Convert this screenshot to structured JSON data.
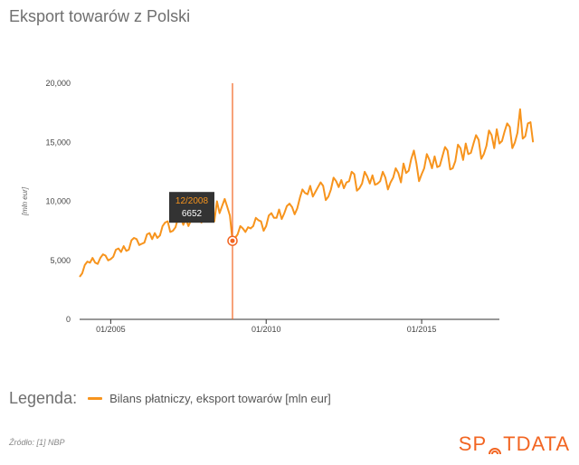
{
  "title": "Eksport towarów z Polski",
  "legend": {
    "heading": "Legenda:",
    "label": "Bilans płatniczy, eksport towarów [mln eur]"
  },
  "source": "Źródło: [1] NBP",
  "logo": {
    "before": "SP",
    "after": "TDATA"
  },
  "colors": {
    "series": "#f7941d",
    "marker_line": "#f26522",
    "tooltip_bg": "#333333",
    "axis": "#333333",
    "tick_text": "#444444"
  },
  "tooltip": {
    "date": "12/2008",
    "value": "6652"
  },
  "chart_data": {
    "type": "line",
    "title": "Eksport towarów z Polski",
    "ylabel": "[mln eur]",
    "xlabel": "",
    "ylim": [
      0,
      20000
    ],
    "yticks": [
      0,
      5000,
      10000,
      15000,
      20000
    ],
    "ytick_labels": [
      "0",
      "5,000",
      "10,000",
      "15,000",
      "20,000"
    ],
    "xlim": [
      "2004-01",
      "2017-07"
    ],
    "xticks": [
      "2005-01",
      "2010-01",
      "2015-01"
    ],
    "xtick_labels": [
      "01/2005",
      "01/2010",
      "01/2015"
    ],
    "grid": false,
    "highlight": {
      "x": "2008-12",
      "y": 6652
    },
    "series": [
      {
        "name": "Bilans płatniczy, eksport towarów [mln eur]",
        "x_start": "2004-01",
        "frequency": "monthly",
        "values": [
          3600,
          3900,
          4600,
          4900,
          4800,
          5200,
          4800,
          4700,
          5200,
          5500,
          5400,
          5000,
          5100,
          5300,
          5900,
          6000,
          5700,
          6200,
          5800,
          5900,
          6700,
          6900,
          6800,
          6300,
          6400,
          6500,
          7200,
          7300,
          6800,
          7300,
          6900,
          7100,
          7900,
          8200,
          8300,
          7400,
          7500,
          7800,
          8600,
          8700,
          8000,
          8500,
          7900,
          8400,
          9000,
          9300,
          9100,
          8200,
          8400,
          8800,
          9300,
          10500,
          8300,
          10000,
          9000,
          9600,
          10200,
          9500,
          8800,
          6652,
          6900,
          7200,
          7900,
          7700,
          7400,
          7800,
          7700,
          7900,
          8600,
          8400,
          8300,
          7500,
          7900,
          8800,
          9000,
          8600,
          8600,
          9300,
          8500,
          9000,
          9600,
          9800,
          9500,
          8900,
          9400,
          10300,
          11000,
          10700,
          10600,
          11300,
          10400,
          10800,
          11200,
          11600,
          11300,
          10100,
          10400,
          11000,
          12000,
          11700,
          11200,
          11800,
          11100,
          11600,
          11700,
          12500,
          12300,
          10900,
          11100,
          11500,
          12500,
          12100,
          11500,
          12200,
          11400,
          11500,
          11700,
          12500,
          12000,
          11000,
          11600,
          12000,
          12800,
          12400,
          11600,
          13200,
          12400,
          12600,
          13600,
          14300,
          13200,
          11700,
          12300,
          12800,
          14000,
          13500,
          12800,
          13800,
          12900,
          13000,
          13800,
          14600,
          14300,
          12700,
          12800,
          13400,
          14800,
          14500,
          13500,
          14900,
          14000,
          14100,
          14900,
          15600,
          15200,
          13600,
          14000,
          14700,
          16000,
          15600,
          14500,
          16100,
          14900,
          15100,
          15900,
          16600,
          16300,
          14500,
          15000,
          15800,
          17800,
          15300,
          15500,
          16600,
          16700,
          15000
        ]
      }
    ]
  }
}
